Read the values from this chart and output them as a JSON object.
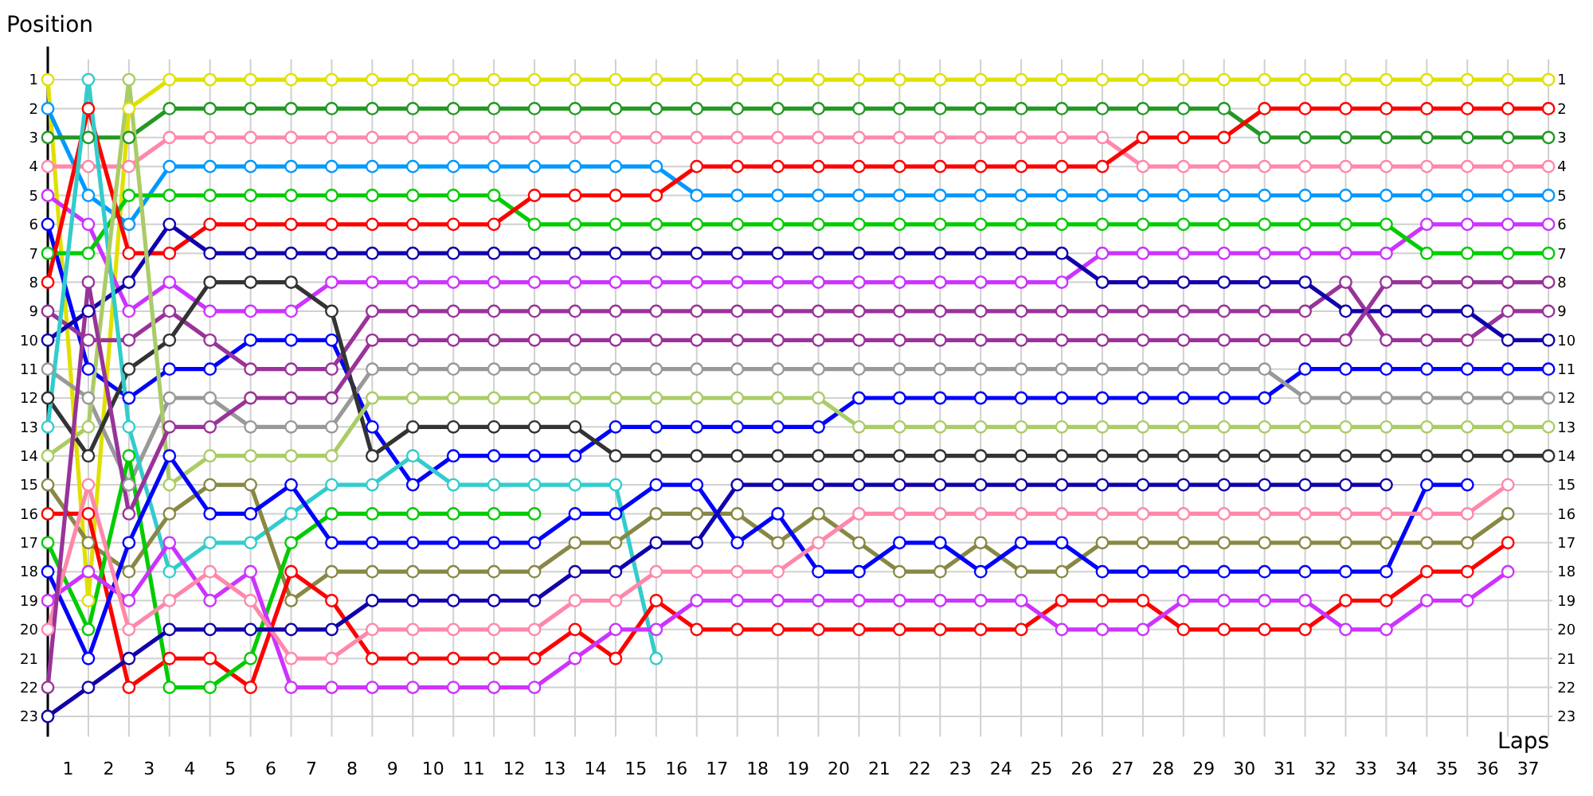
{
  "chart_data": {
    "type": "line",
    "ylabel": "Position",
    "xlabel": "Laps",
    "x": [
      0,
      1,
      2,
      3,
      4,
      5,
      6,
      7,
      8,
      9,
      10,
      11,
      12,
      13,
      14,
      15,
      16,
      17,
      18,
      19,
      20,
      21,
      22,
      23,
      24,
      25,
      26,
      27,
      28,
      29,
      30,
      31,
      32,
      33,
      34,
      35,
      36,
      37
    ],
    "xlim": [
      0,
      37.1
    ],
    "xticks": [
      {
        "value": 0.5,
        "label": "1"
      },
      {
        "value": 1.5,
        "label": "2"
      },
      {
        "value": 2.5,
        "label": "3"
      },
      {
        "value": 3.5,
        "label": "4"
      },
      {
        "value": 4.5,
        "label": "5"
      },
      {
        "value": 5.5,
        "label": "6"
      },
      {
        "value": 6.5,
        "label": "7"
      },
      {
        "value": 7.5,
        "label": "8"
      },
      {
        "value": 8.5,
        "label": "9"
      },
      {
        "value": 9.5,
        "label": "10"
      },
      {
        "value": 10.5,
        "label": "11"
      },
      {
        "value": 11.5,
        "label": "12"
      },
      {
        "value": 12.5,
        "label": "13"
      },
      {
        "value": 13.5,
        "label": "14"
      },
      {
        "value": 14.5,
        "label": "15"
      },
      {
        "value": 15.5,
        "label": "16"
      },
      {
        "value": 16.5,
        "label": "17"
      },
      {
        "value": 17.5,
        "label": "18"
      },
      {
        "value": 18.5,
        "label": "19"
      },
      {
        "value": 19.5,
        "label": "20"
      },
      {
        "value": 20.5,
        "label": "21"
      },
      {
        "value": 21.5,
        "label": "22"
      },
      {
        "value": 22.5,
        "label": "23"
      },
      {
        "value": 23.5,
        "label": "24"
      },
      {
        "value": 24.5,
        "label": "25"
      },
      {
        "value": 25.5,
        "label": "26"
      },
      {
        "value": 26.5,
        "label": "27"
      },
      {
        "value": 27.5,
        "label": "28"
      },
      {
        "value": 28.5,
        "label": "29"
      },
      {
        "value": 29.5,
        "label": "30"
      },
      {
        "value": 30.5,
        "label": "31"
      },
      {
        "value": 31.5,
        "label": "32"
      },
      {
        "value": 32.5,
        "label": "33"
      },
      {
        "value": 33.5,
        "label": "34"
      },
      {
        "value": 34.5,
        "label": "35"
      },
      {
        "value": 35.5,
        "label": "36"
      },
      {
        "value": 36.5,
        "label": "37"
      }
    ],
    "ylim": [
      23.7,
      0.3
    ],
    "yticks": [
      1,
      2,
      3,
      4,
      5,
      6,
      7,
      8,
      9,
      10,
      11,
      12,
      13,
      14,
      15,
      16,
      17,
      18,
      19,
      20,
      21,
      22,
      23
    ],
    "y2lim": [
      23.7,
      0.3
    ],
    "y2ticks": [
      1,
      2,
      3,
      4,
      5,
      6,
      7,
      8,
      9,
      10,
      11,
      12,
      13,
      14,
      15,
      16,
      17,
      18,
      19,
      20,
      21,
      22,
      23
    ],
    "grid": true,
    "marker": "circle",
    "series": [
      {
        "color": "#e0e000",
        "values": [
          1,
          19,
          2,
          1,
          1,
          1,
          1,
          1,
          1,
          1,
          1,
          1,
          1,
          1,
          1,
          1,
          1,
          1,
          1,
          1,
          1,
          1,
          1,
          1,
          1,
          1,
          1,
          1,
          1,
          1,
          1,
          1,
          1,
          1,
          1,
          1,
          1,
          1
        ]
      },
      {
        "color": "#0099ff",
        "values": [
          2,
          5,
          6,
          4,
          4,
          4,
          4,
          4,
          4,
          4,
          4,
          4,
          4,
          4,
          4,
          4,
          5,
          5,
          5,
          5,
          5,
          5,
          5,
          5,
          5,
          5,
          5,
          5,
          5,
          5,
          5,
          5,
          5,
          5,
          5,
          5,
          5,
          5
        ]
      },
      {
        "color": "#229922",
        "values": [
          3,
          3,
          3,
          2,
          2,
          2,
          2,
          2,
          2,
          2,
          2,
          2,
          2,
          2,
          2,
          2,
          2,
          2,
          2,
          2,
          2,
          2,
          2,
          2,
          2,
          2,
          2,
          2,
          2,
          2,
          3,
          3,
          3,
          3,
          3,
          3,
          3,
          3
        ]
      },
      {
        "color": "#ff88aa",
        "values": [
          4,
          4,
          4,
          3,
          3,
          3,
          3,
          3,
          3,
          3,
          3,
          3,
          3,
          3,
          3,
          3,
          3,
          3,
          3,
          3,
          3,
          3,
          3,
          3,
          3,
          3,
          3,
          4,
          4,
          4,
          4,
          4,
          4,
          4,
          4,
          4,
          4,
          4
        ]
      },
      {
        "color": "#cc33ff",
        "values": [
          5,
          6,
          9,
          8,
          9,
          9,
          9,
          8,
          8,
          8,
          8,
          8,
          8,
          8,
          8,
          8,
          8,
          8,
          8,
          8,
          8,
          8,
          8,
          8,
          8,
          8,
          7,
          7,
          7,
          7,
          7,
          7,
          7,
          7,
          6,
          6,
          6,
          6
        ]
      },
      {
        "color": "#0000ff",
        "values": [
          6,
          11,
          12,
          11,
          11,
          10,
          10,
          10,
          13,
          15,
          14,
          14,
          14,
          14,
          13,
          13,
          13,
          13,
          13,
          13,
          12,
          12,
          12,
          12,
          12,
          12,
          12,
          12,
          12,
          12,
          12,
          11,
          11,
          11,
          11,
          11,
          11,
          11
        ]
      },
      {
        "color": "#00cc00",
        "values": [
          7,
          7,
          5,
          5,
          5,
          5,
          5,
          5,
          5,
          5,
          5,
          5,
          6,
          6,
          6,
          6,
          6,
          6,
          6,
          6,
          6,
          6,
          6,
          6,
          6,
          6,
          6,
          6,
          6,
          6,
          6,
          6,
          6,
          6,
          7,
          7,
          7,
          7
        ]
      },
      {
        "color": "#ff0000",
        "values": [
          8,
          2,
          7,
          7,
          6,
          6,
          6,
          6,
          6,
          6,
          6,
          6,
          5,
          5,
          5,
          5,
          4,
          4,
          4,
          4,
          4,
          4,
          4,
          4,
          4,
          4,
          4,
          3,
          3,
          3,
          2,
          2,
          2,
          2,
          2,
          2,
          2,
          2
        ]
      },
      {
        "color": "#993399",
        "values": [
          9,
          10,
          10,
          9,
          10,
          11,
          11,
          11,
          9,
          9,
          9,
          9,
          9,
          9,
          9,
          9,
          9,
          9,
          9,
          9,
          9,
          9,
          9,
          9,
          9,
          9,
          9,
          9,
          9,
          9,
          9,
          9,
          8,
          10,
          10,
          10,
          9,
          9
        ]
      },
      {
        "color": "#1100aa",
        "values": [
          10,
          9,
          8,
          6,
          7,
          7,
          7,
          7,
          7,
          7,
          7,
          7,
          7,
          7,
          7,
          7,
          7,
          7,
          7,
          7,
          7,
          7,
          7,
          7,
          7,
          7,
          8,
          8,
          8,
          8,
          8,
          8,
          9,
          9,
          9,
          9,
          10,
          10
        ]
      },
      {
        "color": "#999999",
        "values": [
          11,
          12,
          15,
          12,
          12,
          13,
          13,
          13,
          11,
          11,
          11,
          11,
          11,
          11,
          11,
          11,
          11,
          11,
          11,
          11,
          11,
          11,
          11,
          11,
          11,
          11,
          11,
          11,
          11,
          11,
          11,
          12,
          12,
          12,
          12,
          12,
          12,
          12
        ]
      },
      {
        "color": "#333333",
        "values": [
          12,
          14,
          11,
          10,
          8,
          8,
          8,
          9,
          14,
          13,
          13,
          13,
          13,
          13,
          14,
          14,
          14,
          14,
          14,
          14,
          14,
          14,
          14,
          14,
          14,
          14,
          14,
          14,
          14,
          14,
          14,
          14,
          14,
          14,
          14,
          14,
          14,
          14
        ]
      },
      {
        "color": "#33cccc",
        "values": [
          13,
          1,
          13,
          18,
          17,
          17,
          16,
          15,
          15,
          14,
          15,
          15,
          15,
          15,
          15,
          21,
          null,
          null,
          null,
          null,
          null,
          null,
          null,
          null,
          null,
          null,
          null,
          null,
          null,
          null,
          null,
          null,
          null,
          null,
          null,
          null,
          null,
          null
        ]
      },
      {
        "color": "#aacc66",
        "values": [
          14,
          13,
          1,
          15,
          14,
          14,
          14,
          14,
          12,
          12,
          12,
          12,
          12,
          12,
          12,
          12,
          12,
          12,
          12,
          12,
          13,
          13,
          13,
          13,
          13,
          13,
          13,
          13,
          13,
          13,
          13,
          13,
          13,
          13,
          13,
          13,
          13,
          13
        ]
      },
      {
        "color": "#888844",
        "values": [
          15,
          17,
          18,
          16,
          15,
          15,
          19,
          18,
          18,
          18,
          18,
          18,
          18,
          17,
          17,
          16,
          16,
          16,
          17,
          16,
          17,
          18,
          18,
          17,
          18,
          18,
          17,
          17,
          17,
          17,
          17,
          17,
          17,
          17,
          17,
          17,
          16,
          null
        ]
      },
      {
        "color": "#ff0000",
        "values": [
          16,
          16,
          22,
          21,
          21,
          22,
          18,
          19,
          21,
          21,
          21,
          21,
          21,
          20,
          21,
          19,
          20,
          20,
          20,
          20,
          20,
          20,
          20,
          20,
          20,
          19,
          19,
          19,
          20,
          20,
          20,
          20,
          19,
          19,
          18,
          18,
          17,
          null
        ]
      },
      {
        "color": "#00cc00",
        "values": [
          17,
          20,
          14,
          22,
          22,
          21,
          17,
          16,
          16,
          16,
          16,
          16,
          16,
          null,
          null,
          null,
          null,
          null,
          null,
          null,
          null,
          null,
          null,
          null,
          null,
          null,
          null,
          null,
          null,
          null,
          null,
          null,
          null,
          null,
          null,
          null,
          null,
          null
        ]
      },
      {
        "color": "#0000ff",
        "values": [
          18,
          21,
          17,
          14,
          16,
          16,
          15,
          17,
          17,
          17,
          17,
          17,
          17,
          16,
          16,
          15,
          15,
          17,
          16,
          18,
          18,
          17,
          17,
          18,
          17,
          17,
          18,
          18,
          18,
          18,
          18,
          18,
          18,
          18,
          15,
          15,
          null,
          null
        ]
      },
      {
        "color": "#cc33ff",
        "values": [
          19,
          18,
          19,
          17,
          19,
          18,
          22,
          22,
          22,
          22,
          22,
          22,
          22,
          21,
          20,
          20,
          19,
          19,
          19,
          19,
          19,
          19,
          19,
          19,
          19,
          20,
          20,
          20,
          19,
          19,
          19,
          19,
          20,
          20,
          19,
          19,
          18,
          null
        ]
      },
      {
        "color": "#ff88aa",
        "values": [
          20,
          15,
          20,
          19,
          18,
          19,
          21,
          21,
          20,
          20,
          20,
          20,
          20,
          19,
          19,
          18,
          18,
          18,
          18,
          17,
          16,
          16,
          16,
          16,
          16,
          16,
          16,
          16,
          16,
          16,
          16,
          16,
          16,
          16,
          16,
          16,
          15,
          null
        ]
      },
      {
        "color": "#993399",
        "values": [
          22,
          8,
          16,
          13,
          13,
          12,
          12,
          12,
          10,
          10,
          10,
          10,
          10,
          10,
          10,
          10,
          10,
          10,
          10,
          10,
          10,
          10,
          10,
          10,
          10,
          10,
          10,
          10,
          10,
          10,
          10,
          10,
          10,
          8,
          8,
          8,
          8,
          8
        ]
      },
      {
        "color": "#1100aa",
        "values": [
          23,
          22,
          21,
          20,
          20,
          20,
          20,
          20,
          19,
          19,
          19,
          19,
          19,
          18,
          18,
          17,
          17,
          15,
          15,
          15,
          15,
          15,
          15,
          15,
          15,
          15,
          15,
          15,
          15,
          15,
          15,
          15,
          15,
          15,
          null,
          null,
          null,
          null
        ]
      }
    ]
  }
}
